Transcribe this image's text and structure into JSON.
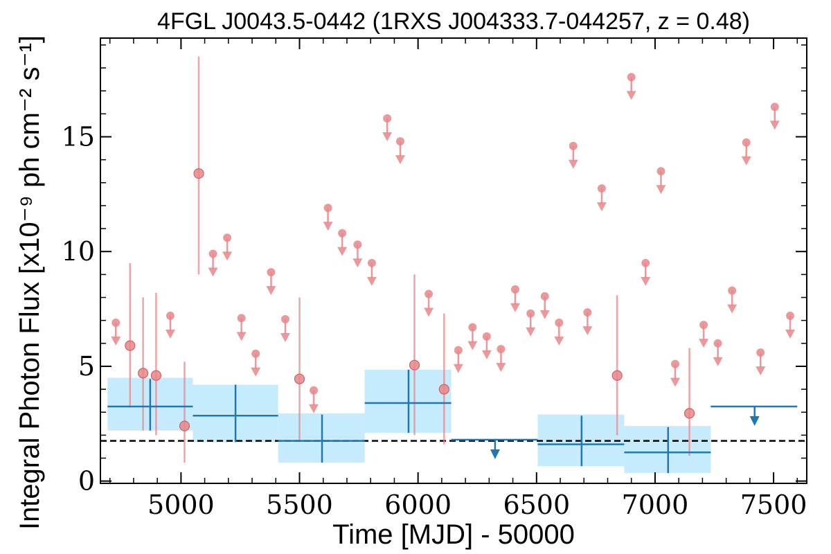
{
  "chart_data": {
    "type": "scatter",
    "title": "4FGL J0043.5-0442 (1RXS J004333.7-044257, z = 0.48)",
    "xlabel": "Time [MJD] - 50000",
    "ylabel": "Integral Photon Flux [x10⁻⁹ ph cm⁻² s⁻¹]",
    "xlim": [
      4660,
      7640
    ],
    "ylim": [
      -0.1,
      19.3
    ],
    "xticks": [
      5000,
      5500,
      6000,
      6500,
      7000,
      7500
    ],
    "yticks": [
      0,
      5,
      10,
      15
    ],
    "xtick_labels": [
      "5000",
      "5500",
      "6000",
      "6500",
      "7000",
      "7500"
    ],
    "ytick_labels": [
      "0",
      "5",
      "10",
      "15"
    ],
    "colors": {
      "short_bin": "#e8868a",
      "long_bin": "#1f77b4",
      "long_bin_band": "#c6ebfc",
      "average_line": "#000000"
    },
    "average_flux": 1.75,
    "short_bins_detections": [
      {
        "x": 4785,
        "y": 5.9,
        "ylo": 3.2,
        "yhi": 9.5
      },
      {
        "x": 4840,
        "y": 4.7,
        "ylo": 2.2,
        "yhi": 8.0
      },
      {
        "x": 4895,
        "y": 4.6,
        "ylo": 2.0,
        "yhi": 8.2
      },
      {
        "x": 5015,
        "y": 2.4,
        "ylo": 0.8,
        "yhi": 5.2
      },
      {
        "x": 5075,
        "y": 13.4,
        "ylo": 9.0,
        "yhi": 18.5
      },
      {
        "x": 5500,
        "y": 4.45,
        "ylo": 1.8,
        "yhi": 8.0
      },
      {
        "x": 5985,
        "y": 5.05,
        "ylo": 2.0,
        "yhi": 9.0
      },
      {
        "x": 6110,
        "y": 4.0,
        "ylo": 1.6,
        "yhi": 7.3
      },
      {
        "x": 6840,
        "y": 4.6,
        "ylo": 2.0,
        "yhi": 8.1
      },
      {
        "x": 7145,
        "y": 2.95,
        "ylo": 1.1,
        "yhi": 5.8
      }
    ],
    "short_bins_upper_limits": [
      {
        "x": 4725,
        "y": 6.9
      },
      {
        "x": 4955,
        "y": 7.2
      },
      {
        "x": 5135,
        "y": 9.9
      },
      {
        "x": 5195,
        "y": 10.6
      },
      {
        "x": 5255,
        "y": 7.1
      },
      {
        "x": 5315,
        "y": 5.55
      },
      {
        "x": 5380,
        "y": 9.1
      },
      {
        "x": 5440,
        "y": 7.05
      },
      {
        "x": 5560,
        "y": 3.95
      },
      {
        "x": 5620,
        "y": 11.9
      },
      {
        "x": 5680,
        "y": 10.8
      },
      {
        "x": 5745,
        "y": 10.3
      },
      {
        "x": 5805,
        "y": 9.5
      },
      {
        "x": 5870,
        "y": 15.8
      },
      {
        "x": 5925,
        "y": 14.8
      },
      {
        "x": 6045,
        "y": 8.15
      },
      {
        "x": 6170,
        "y": 5.7
      },
      {
        "x": 6230,
        "y": 6.7
      },
      {
        "x": 6290,
        "y": 6.3
      },
      {
        "x": 6350,
        "y": 5.75
      },
      {
        "x": 6410,
        "y": 8.35
      },
      {
        "x": 6475,
        "y": 7.3
      },
      {
        "x": 6535,
        "y": 8.05
      },
      {
        "x": 6595,
        "y": 6.9
      },
      {
        "x": 6655,
        "y": 14.6
      },
      {
        "x": 6715,
        "y": 7.35
      },
      {
        "x": 6775,
        "y": 12.75
      },
      {
        "x": 6900,
        "y": 17.6
      },
      {
        "x": 6960,
        "y": 9.5
      },
      {
        "x": 7025,
        "y": 13.5
      },
      {
        "x": 7085,
        "y": 5.1
      },
      {
        "x": 7205,
        "y": 6.8
      },
      {
        "x": 7265,
        "y": 6.0
      },
      {
        "x": 7325,
        "y": 8.3
      },
      {
        "x": 7385,
        "y": 14.75
      },
      {
        "x": 7445,
        "y": 5.6
      },
      {
        "x": 7505,
        "y": 16.3
      },
      {
        "x": 7570,
        "y": 7.2
      }
    ],
    "long_bins": [
      {
        "x0": 4690,
        "x1": 5050,
        "xc": 4870,
        "y": 3.25,
        "ylo": 2.2,
        "yhi": 4.45,
        "band_lo": 2.2,
        "band_hi": 4.5,
        "upper_limit": false
      },
      {
        "x0": 5050,
        "x1": 5410,
        "xc": 5230,
        "y": 2.85,
        "ylo": 1.7,
        "yhi": 4.2,
        "band_lo": 1.7,
        "band_hi": 4.2,
        "upper_limit": false
      },
      {
        "x0": 5410,
        "x1": 5775,
        "xc": 5595,
        "y": 1.75,
        "ylo": 0.8,
        "yhi": 2.9,
        "band_lo": 0.8,
        "band_hi": 2.95,
        "upper_limit": false
      },
      {
        "x0": 5775,
        "x1": 6140,
        "xc": 5960,
        "y": 3.4,
        "ylo": 2.1,
        "yhi": 4.85,
        "band_lo": 2.1,
        "band_hi": 4.85,
        "upper_limit": false
      },
      {
        "x0": 6140,
        "x1": 6505,
        "xc": 6325,
        "y": 1.8,
        "upper_limit": true
      },
      {
        "x0": 6505,
        "x1": 6870,
        "xc": 6690,
        "y": 1.6,
        "ylo": 0.65,
        "yhi": 2.85,
        "band_lo": 0.65,
        "band_hi": 2.9,
        "upper_limit": false
      },
      {
        "x0": 6870,
        "x1": 7235,
        "xc": 7055,
        "y": 1.25,
        "ylo": 0.35,
        "yhi": 2.35,
        "band_lo": 0.35,
        "band_hi": 2.4,
        "upper_limit": false
      },
      {
        "x0": 7235,
        "x1": 7600,
        "xc": 7420,
        "y": 3.25,
        "upper_limit": true
      }
    ]
  }
}
